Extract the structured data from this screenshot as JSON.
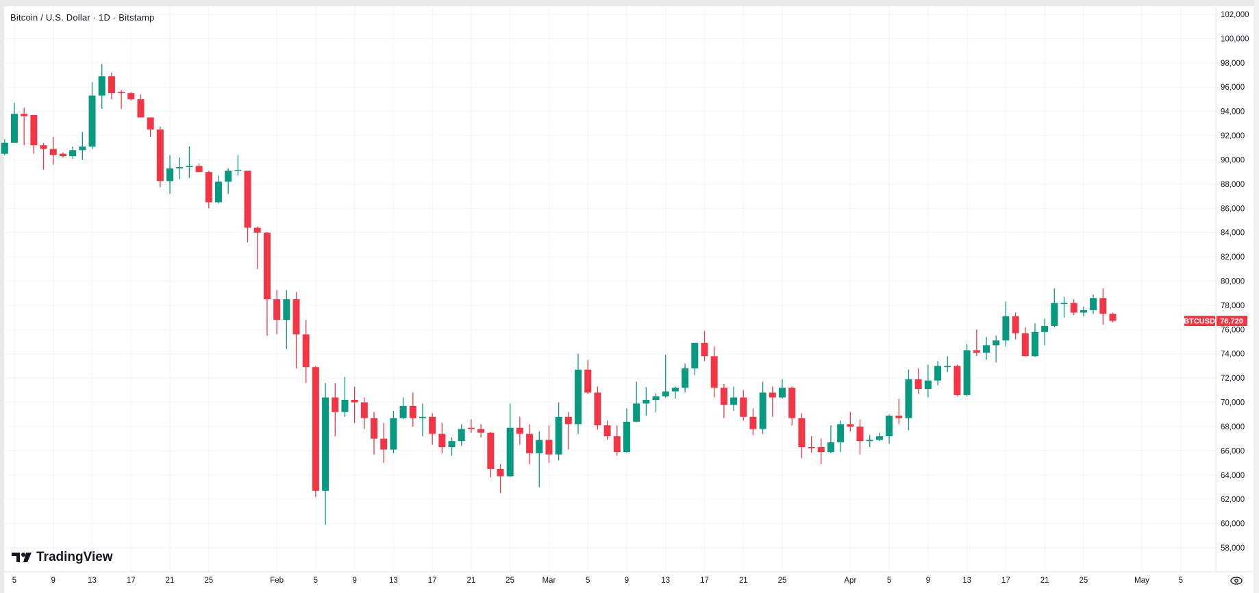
{
  "header": {
    "title": "Bitcoin / U.S. Dollar · 1D · Bitstamp"
  },
  "branding": {
    "logo_text": "TradingView"
  },
  "price_tag": {
    "symbol": "BTCUSD",
    "price": "76,720"
  },
  "icons": {
    "settings": "eye-settings-icon",
    "logo": "tradingview-logo-icon"
  },
  "colors": {
    "up": "#089981",
    "down": "#F23645",
    "grid": "#f0f3fa",
    "tag": "#F23645"
  },
  "chart_data": {
    "type": "candlestick",
    "title": "Bitcoin / U.S. Dollar · 1D · Bitstamp",
    "ylim": [
      57000,
      102500
    ],
    "grid": true,
    "y_ticks": [
      102000,
      100000,
      98000,
      96000,
      94000,
      92000,
      90000,
      88000,
      86000,
      84000,
      82000,
      80000,
      78000,
      76000,
      74000,
      72000,
      70000,
      68000,
      66000,
      64000,
      62000,
      60000,
      58000
    ],
    "y_tick_labels": [
      "102,000",
      "100,000",
      "98,000",
      "96,000",
      "94,000",
      "92,000",
      "90,000",
      "88,000",
      "86,000",
      "84,000",
      "82,000",
      "80,000",
      "78,000",
      "76,000",
      "74,000",
      "72,000",
      "70,000",
      "68,000",
      "66,000",
      "64,000",
      "62,000",
      "60,000",
      "58,000"
    ],
    "x_ticks": [
      {
        "date": "01-05",
        "label": "5"
      },
      {
        "date": "01-09",
        "label": "9"
      },
      {
        "date": "01-13",
        "label": "13"
      },
      {
        "date": "01-17",
        "label": "17"
      },
      {
        "date": "01-21",
        "label": "21"
      },
      {
        "date": "01-25",
        "label": "25"
      },
      {
        "date": "02-01",
        "label": "Feb"
      },
      {
        "date": "02-05",
        "label": "5"
      },
      {
        "date": "02-09",
        "label": "9"
      },
      {
        "date": "02-13",
        "label": "13"
      },
      {
        "date": "02-17",
        "label": "17"
      },
      {
        "date": "02-21",
        "label": "21"
      },
      {
        "date": "02-25",
        "label": "25"
      },
      {
        "date": "03-01",
        "label": "Mar"
      },
      {
        "date": "03-05",
        "label": "5"
      },
      {
        "date": "03-09",
        "label": "9"
      },
      {
        "date": "03-13",
        "label": "13"
      },
      {
        "date": "03-17",
        "label": "17"
      },
      {
        "date": "03-21",
        "label": "21"
      },
      {
        "date": "03-25",
        "label": "25"
      },
      {
        "date": "04-01",
        "label": "Apr"
      },
      {
        "date": "04-05",
        "label": "5"
      },
      {
        "date": "04-09",
        "label": "9"
      },
      {
        "date": "04-13",
        "label": "13"
      },
      {
        "date": "04-17",
        "label": "17"
      },
      {
        "date": "04-21",
        "label": "21"
      },
      {
        "date": "04-25",
        "label": "25"
      },
      {
        "date": "05-01",
        "label": "May"
      },
      {
        "date": "05-05",
        "label": "5"
      }
    ],
    "columns": [
      "date",
      "open",
      "high",
      "low",
      "close"
    ],
    "candles": [
      [
        "01-04",
        90500,
        91700,
        90400,
        91400
      ],
      [
        "01-05",
        91400,
        94700,
        91400,
        93800
      ],
      [
        "01-06",
        93800,
        94300,
        91200,
        93600
      ],
      [
        "01-07",
        93700,
        93700,
        90500,
        91200
      ],
      [
        "01-08",
        91200,
        91400,
        89200,
        90900
      ],
      [
        "01-09",
        90900,
        91900,
        89600,
        90400
      ],
      [
        "01-10",
        90500,
        90600,
        90200,
        90300
      ],
      [
        "01-11",
        90300,
        91100,
        90100,
        90800
      ],
      [
        "01-12",
        90800,
        92300,
        90000,
        91100
      ],
      [
        "01-13",
        91100,
        96400,
        90900,
        95300
      ],
      [
        "01-14",
        95300,
        97900,
        94200,
        96900
      ],
      [
        "01-15",
        96900,
        97200,
        95000,
        95500
      ],
      [
        "01-16",
        95600,
        95750,
        94200,
        95500
      ],
      [
        "01-17",
        95500,
        95600,
        94900,
        95000
      ],
      [
        "01-18",
        95000,
        95400,
        93500,
        93500
      ],
      [
        "01-19",
        93500,
        93500,
        91900,
        92500
      ],
      [
        "01-20",
        92500,
        92750,
        87750,
        88250
      ],
      [
        "01-21",
        88250,
        90400,
        87200,
        89300
      ],
      [
        "01-22",
        89300,
        90200,
        88400,
        89400
      ],
      [
        "01-23",
        89400,
        91100,
        88500,
        89500
      ],
      [
        "01-24",
        89500,
        89700,
        89000,
        89000
      ],
      [
        "01-25",
        89000,
        89100,
        86000,
        86500
      ],
      [
        "01-26",
        86500,
        88700,
        86400,
        88200
      ],
      [
        "01-27",
        88200,
        89300,
        87200,
        89100
      ],
      [
        "01-28",
        89100,
        90400,
        88700,
        89150
      ],
      [
        "01-29",
        89100,
        89100,
        83200,
        84400
      ],
      [
        "01-30",
        84400,
        84500,
        81000,
        84000
      ],
      [
        "01-31",
        84000,
        84050,
        75500,
        78500
      ],
      [
        "02-01",
        78500,
        79250,
        75600,
        76800
      ],
      [
        "02-02",
        76800,
        79250,
        74400,
        78500
      ],
      [
        "02-03",
        78500,
        79100,
        72800,
        75600
      ],
      [
        "02-04",
        75600,
        76800,
        71600,
        72900
      ],
      [
        "02-05",
        72900,
        73000,
        62200,
        62700
      ],
      [
        "02-06",
        62700,
        71600,
        59900,
        70400
      ],
      [
        "02-07",
        70400,
        71600,
        67200,
        69200
      ],
      [
        "02-08",
        69200,
        72100,
        68800,
        70200
      ],
      [
        "02-09",
        70200,
        71300,
        68300,
        70000
      ],
      [
        "02-10",
        70000,
        70400,
        67800,
        68700
      ],
      [
        "02-11",
        68700,
        69200,
        65700,
        67000
      ],
      [
        "02-12",
        67000,
        68300,
        65000,
        66100
      ],
      [
        "02-13",
        66100,
        69300,
        65800,
        68700
      ],
      [
        "02-14",
        68700,
        70400,
        68600,
        69700
      ],
      [
        "02-15",
        69700,
        70800,
        68000,
        68700
      ],
      [
        "02-16",
        68700,
        69900,
        67200,
        68800
      ],
      [
        "02-17",
        68800,
        69100,
        66500,
        67400
      ],
      [
        "02-18",
        67400,
        68300,
        65800,
        66300
      ],
      [
        "02-19",
        66300,
        67100,
        65600,
        66800
      ],
      [
        "02-20",
        66800,
        68200,
        66400,
        67800
      ],
      [
        "02-21",
        67900,
        68600,
        67500,
        67800
      ],
      [
        "02-22",
        67800,
        68200,
        67100,
        67500
      ],
      [
        "02-23",
        67500,
        67550,
        63800,
        64500
      ],
      [
        "02-24",
        64500,
        64900,
        62500,
        63900
      ],
      [
        "02-25",
        63900,
        69900,
        63850,
        67900
      ],
      [
        "02-26",
        67900,
        68800,
        66500,
        67400
      ],
      [
        "02-27",
        67400,
        68200,
        64900,
        65800
      ],
      [
        "02-28",
        65800,
        67600,
        63000,
        66900
      ],
      [
        "03-01",
        66900,
        68100,
        65000,
        65700
      ],
      [
        "03-02",
        65700,
        70000,
        65200,
        68800
      ],
      [
        "03-03",
        68800,
        69200,
        66100,
        68200
      ],
      [
        "03-04",
        68200,
        74000,
        67400,
        72700
      ],
      [
        "03-05",
        72700,
        73500,
        70700,
        70800
      ],
      [
        "03-06",
        70800,
        71300,
        67750,
        68100
      ],
      [
        "03-07",
        68100,
        68500,
        66900,
        67200
      ],
      [
        "03-08",
        67200,
        68100,
        65600,
        65900
      ],
      [
        "03-09",
        65900,
        69500,
        65850,
        68400
      ],
      [
        "03-10",
        68400,
        71700,
        68350,
        69900
      ],
      [
        "03-11",
        69900,
        71250,
        68900,
        70200
      ],
      [
        "03-12",
        70200,
        70750,
        69200,
        70500
      ],
      [
        "03-13",
        70500,
        73900,
        70400,
        70900
      ],
      [
        "03-14",
        70900,
        71300,
        70300,
        71200
      ],
      [
        "03-15",
        71200,
        73200,
        70800,
        72800
      ],
      [
        "03-16",
        72800,
        74900,
        72250,
        74900
      ],
      [
        "03-17",
        74900,
        75900,
        73400,
        73800
      ],
      [
        "03-18",
        73800,
        74600,
        70400,
        71200
      ],
      [
        "03-19",
        71200,
        71500,
        68700,
        69800
      ],
      [
        "03-20",
        69800,
        71300,
        69300,
        70400
      ],
      [
        "03-21",
        70400,
        71000,
        68500,
        68800
      ],
      [
        "03-22",
        68800,
        69500,
        67300,
        67800
      ],
      [
        "03-23",
        67800,
        71700,
        67400,
        70800
      ],
      [
        "03-24",
        70800,
        71300,
        68800,
        70400
      ],
      [
        "03-25",
        70400,
        71900,
        70300,
        71200
      ],
      [
        "03-26",
        71200,
        71300,
        68100,
        68700
      ],
      [
        "03-27",
        68700,
        69100,
        65400,
        66300
      ],
      [
        "03-28",
        66300,
        67200,
        65850,
        66250
      ],
      [
        "03-29",
        66300,
        67000,
        64900,
        65900
      ],
      [
        "03-30",
        65900,
        68100,
        65800,
        66700
      ],
      [
        "03-31",
        66700,
        68500,
        65900,
        68200
      ],
      [
        "04-01",
        68200,
        69200,
        67600,
        68000
      ],
      [
        "04-02",
        68000,
        68600,
        65700,
        66800
      ],
      [
        "04-03",
        66800,
        67300,
        66300,
        66900
      ],
      [
        "04-04",
        66900,
        67500,
        66800,
        67200
      ],
      [
        "04-05",
        67200,
        69000,
        66600,
        68900
      ],
      [
        "04-06",
        68900,
        70300,
        68200,
        68700
      ],
      [
        "04-07",
        68700,
        72700,
        67700,
        71900
      ],
      [
        "04-08",
        71900,
        72800,
        70700,
        71100
      ],
      [
        "04-09",
        71100,
        73100,
        70400,
        71800
      ],
      [
        "04-10",
        71800,
        73400,
        71400,
        73000
      ],
      [
        "04-11",
        72900,
        73800,
        72500,
        73000
      ],
      [
        "04-12",
        73000,
        73100,
        70500,
        70600
      ],
      [
        "04-13",
        70600,
        74800,
        70500,
        74300
      ],
      [
        "04-14",
        74300,
        76000,
        73800,
        74100
      ],
      [
        "04-15",
        74100,
        75400,
        73500,
        74700
      ],
      [
        "04-16",
        74700,
        75500,
        73300,
        75100
      ],
      [
        "04-17",
        75100,
        78300,
        74600,
        77100
      ],
      [
        "04-18",
        77100,
        77400,
        75200,
        75700
      ],
      [
        "04-19",
        75700,
        76200,
        73800,
        73800
      ],
      [
        "04-20",
        73800,
        76500,
        73750,
        75800
      ],
      [
        "04-21",
        75800,
        76900,
        74700,
        76300
      ],
      [
        "04-22",
        76300,
        79400,
        76200,
        78200
      ],
      [
        "04-23",
        78100,
        78700,
        77000,
        78200
      ],
      [
        "04-24",
        78200,
        78500,
        77200,
        77400
      ],
      [
        "04-25",
        77400,
        77900,
        77100,
        77600
      ],
      [
        "04-26",
        77600,
        78900,
        77300,
        78600
      ],
      [
        "04-27",
        78600,
        79400,
        76400,
        77300
      ],
      [
        "04-28",
        77300,
        77400,
        76600,
        76720
      ]
    ],
    "last_price": 76720
  }
}
